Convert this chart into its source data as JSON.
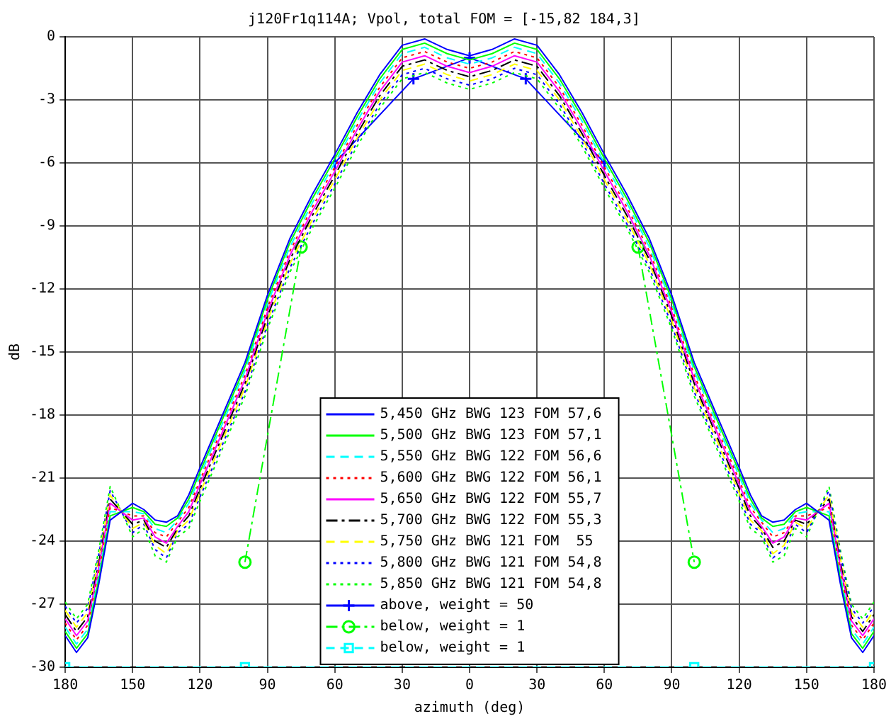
{
  "chart_data": {
    "type": "line",
    "title": "j120Fr1q114A; Vpol, total FOM = [-15,82 184,3]",
    "xlabel": "azimuth (deg)",
    "ylabel": "dB",
    "x": [
      -180,
      -175,
      -170,
      -165,
      -160,
      -150,
      -145,
      -140,
      -135,
      -130,
      -125,
      -120,
      -110,
      -100,
      -90,
      -80,
      -70,
      -60,
      -50,
      -40,
      -30,
      -20,
      -10,
      0,
      10,
      20,
      30,
      40,
      50,
      60,
      70,
      80,
      90,
      100,
      110,
      120,
      125,
      130,
      135,
      140,
      145,
      150,
      160,
      165,
      170,
      175,
      180
    ],
    "series": [
      {
        "name": "5,450 GHz BWG 123 FOM 57,6",
        "color": "#0000ff",
        "line_style": "solid",
        "marker": "none",
        "values": [
          -28.5,
          -29.3,
          -28.6,
          -26,
          -23,
          -22.2,
          -22.5,
          -23.0,
          -23.1,
          -22.8,
          -21.8,
          -20.5,
          -18,
          -15.5,
          -12.3,
          -9.6,
          -7.5,
          -5.6,
          -3.6,
          -1.8,
          -0.4,
          -0.1,
          -0.6,
          -0.9,
          -0.6,
          -0.1,
          -0.4,
          -1.8,
          -3.6,
          -5.6,
          -7.5,
          -9.6,
          -12.3,
          -15.5,
          -18,
          -20.5,
          -21.8,
          -22.8,
          -23.1,
          -23.0,
          -22.5,
          -22.2,
          -23,
          -26,
          -28.6,
          -29.3,
          -28.5
        ]
      },
      {
        "name": "5,500 GHz BWG 123 FOM 57,1",
        "color": "#00ff00",
        "line_style": "solid",
        "marker": "none",
        "values": [
          -28.3,
          -29.1,
          -28.4,
          -25.8,
          -22.8,
          -22.4,
          -22.6,
          -23.2,
          -23.3,
          -22.9,
          -22.0,
          -20.7,
          -18.2,
          -15.7,
          -12.5,
          -9.8,
          -7.7,
          -5.8,
          -3.8,
          -2.0,
          -0.6,
          -0.3,
          -0.8,
          -1.1,
          -0.8,
          -0.3,
          -0.6,
          -2.0,
          -3.8,
          -5.8,
          -7.7,
          -9.8,
          -12.5,
          -15.7,
          -18.2,
          -20.7,
          -22.0,
          -22.9,
          -23.3,
          -23.2,
          -22.6,
          -22.4,
          -22.8,
          -25.8,
          -28.4,
          -29.1,
          -28.3
        ]
      },
      {
        "name": "5,550 GHz BWG 122 FOM 56,6",
        "color": "#00ffff",
        "line_style": "dashed",
        "marker": "none",
        "values": [
          -28.1,
          -28.9,
          -28.2,
          -25.6,
          -22.6,
          -22.6,
          -22.7,
          -23.4,
          -23.6,
          -23.0,
          -22.2,
          -20.9,
          -18.4,
          -15.9,
          -12.7,
          -10.0,
          -7.9,
          -6.0,
          -4.0,
          -2.2,
          -0.8,
          -0.5,
          -1.0,
          -1.3,
          -1.0,
          -0.5,
          -0.8,
          -2.2,
          -4.0,
          -6.0,
          -7.9,
          -10.0,
          -12.7,
          -15.9,
          -18.4,
          -20.9,
          -22.2,
          -23.0,
          -23.6,
          -23.4,
          -22.7,
          -22.6,
          -22.6,
          -25.6,
          -28.2,
          -28.9,
          -28.1
        ]
      },
      {
        "name": "5,600 GHz BWG 122 FOM 56,1",
        "color": "#ff0000",
        "line_style": "dotted",
        "marker": "none",
        "values": [
          -27.9,
          -28.7,
          -28.0,
          -25.4,
          -22.4,
          -22.8,
          -22.8,
          -23.6,
          -23.8,
          -23.1,
          -22.4,
          -21.1,
          -18.6,
          -16.1,
          -12.9,
          -10.2,
          -8.1,
          -6.2,
          -4.2,
          -2.4,
          -1.0,
          -0.7,
          -1.2,
          -1.5,
          -1.2,
          -0.7,
          -1.0,
          -2.4,
          -4.2,
          -6.2,
          -8.1,
          -10.2,
          -12.9,
          -16.1,
          -18.6,
          -21.1,
          -22.4,
          -23.1,
          -23.8,
          -23.6,
          -22.8,
          -22.8,
          -22.4,
          -25.4,
          -28.0,
          -28.7,
          -27.9
        ]
      },
      {
        "name": "5,650 GHz BWG 122 FOM 55,7",
        "color": "#ff00ff",
        "line_style": "solid",
        "marker": "none",
        "values": [
          -27.7,
          -28.5,
          -27.8,
          -25.2,
          -22.2,
          -23.0,
          -22.9,
          -23.8,
          -24.1,
          -23.3,
          -22.6,
          -21.3,
          -18.8,
          -16.3,
          -13.1,
          -10.4,
          -8.3,
          -6.4,
          -4.4,
          -2.6,
          -1.2,
          -0.9,
          -1.4,
          -1.7,
          -1.4,
          -0.9,
          -1.2,
          -2.6,
          -4.4,
          -6.4,
          -8.3,
          -10.4,
          -13.1,
          -16.3,
          -18.8,
          -21.3,
          -22.6,
          -23.3,
          -24.1,
          -23.8,
          -22.9,
          -23.0,
          -22.2,
          -25.2,
          -27.8,
          -28.5,
          -27.7
        ]
      },
      {
        "name": "5,700 GHz BWG 122 FOM 55,3",
        "color": "#000000",
        "line_style": "dashdot",
        "marker": "none",
        "values": [
          -27.5,
          -28.3,
          -27.6,
          -25.0,
          -22.0,
          -23.2,
          -23.0,
          -24.0,
          -24.3,
          -23.4,
          -22.8,
          -21.5,
          -19.0,
          -16.5,
          -13.3,
          -10.6,
          -8.5,
          -6.6,
          -4.6,
          -2.8,
          -1.4,
          -1.1,
          -1.6,
          -1.9,
          -1.6,
          -1.1,
          -1.4,
          -2.8,
          -4.6,
          -6.6,
          -8.5,
          -10.6,
          -13.3,
          -16.5,
          -19.0,
          -21.5,
          -22.8,
          -23.4,
          -24.3,
          -24.0,
          -23.0,
          -23.2,
          -22.0,
          -25.0,
          -27.6,
          -28.3,
          -27.5
        ]
      },
      {
        "name": "5,750 GHz BWG 121 FOM  55",
        "color": "#ffff00",
        "line_style": "dashed",
        "marker": "none",
        "values": [
          -27.3,
          -28.1,
          -27.4,
          -24.8,
          -21.8,
          -23.4,
          -23.1,
          -24.2,
          -24.6,
          -23.5,
          -23.0,
          -21.7,
          -19.2,
          -16.7,
          -13.5,
          -10.8,
          -8.7,
          -6.8,
          -4.8,
          -3.0,
          -1.6,
          -1.3,
          -1.8,
          -2.1,
          -1.8,
          -1.3,
          -1.6,
          -3.0,
          -4.8,
          -6.8,
          -8.7,
          -10.8,
          -13.5,
          -16.7,
          -19.2,
          -21.7,
          -23.0,
          -23.5,
          -24.6,
          -24.2,
          -23.1,
          -23.4,
          -21.8,
          -24.8,
          -27.4,
          -28.1,
          -27.3
        ]
      },
      {
        "name": "5,800 GHz BWG 121 FOM 54,8",
        "color": "#0000ff",
        "line_style": "dotted",
        "marker": "none",
        "values": [
          -27.1,
          -27.9,
          -27.2,
          -24.6,
          -21.6,
          -23.6,
          -23.2,
          -24.4,
          -24.8,
          -23.6,
          -23.2,
          -21.9,
          -19.4,
          -16.9,
          -13.7,
          -11.0,
          -8.9,
          -7.0,
          -5.0,
          -3.2,
          -1.8,
          -1.5,
          -2.0,
          -2.3,
          -2.0,
          -1.5,
          -1.8,
          -3.2,
          -5.0,
          -7.0,
          -8.9,
          -11.0,
          -13.7,
          -16.9,
          -19.4,
          -21.9,
          -23.2,
          -23.6,
          -24.8,
          -24.4,
          -23.2,
          -23.6,
          -21.6,
          -24.6,
          -27.2,
          -27.9,
          -27.1
        ]
      },
      {
        "name": "5,850 GHz BWG 121 FOM 54,8",
        "color": "#00ff00",
        "line_style": "dotted",
        "marker": "none",
        "values": [
          -26.9,
          -27.7,
          -27.0,
          -24.4,
          -21.4,
          -23.8,
          -23.4,
          -24.7,
          -25.0,
          -23.8,
          -23.4,
          -22.1,
          -19.6,
          -17.1,
          -13.9,
          -11.2,
          -9.1,
          -7.2,
          -5.2,
          -3.4,
          -2.0,
          -1.7,
          -2.2,
          -2.5,
          -2.2,
          -1.7,
          -2.0,
          -3.4,
          -5.2,
          -7.2,
          -9.1,
          -11.2,
          -13.9,
          -17.1,
          -19.6,
          -22.1,
          -23.4,
          -23.8,
          -25.0,
          -24.7,
          -23.4,
          -23.8,
          -21.4,
          -24.4,
          -27.0,
          -27.7,
          -26.9
        ]
      },
      {
        "name": "above, weight = 50",
        "color": "#0000ff",
        "line_style": "solid",
        "marker": "cross",
        "x": [
          -60,
          -25,
          0,
          25,
          60
        ],
        "values": [
          -6,
          -2,
          -1,
          -2,
          -6
        ]
      },
      {
        "name": "below, weight = 1",
        "color": "#00ff00",
        "line_style": "dashdot",
        "marker": "circle",
        "x": [
          -100,
          -75,
          0,
          75,
          100
        ],
        "values": [
          -25,
          -10,
          null,
          -10,
          -25
        ]
      },
      {
        "name": "below, weight = 1",
        "color": "#00ffff",
        "line_style": "dashed",
        "marker": "square",
        "x": [
          -180,
          -100,
          100,
          180
        ],
        "values": [
          -30,
          -30,
          -30,
          -30
        ]
      }
    ],
    "xlim": [
      -180,
      180
    ],
    "xticks": [
      {
        "value": -180,
        "label": "180"
      },
      {
        "value": -150,
        "label": "150"
      },
      {
        "value": -120,
        "label": "120"
      },
      {
        "value": -90,
        "label": "90"
      },
      {
        "value": -60,
        "label": "60"
      },
      {
        "value": -30,
        "label": "30"
      },
      0,
      30,
      60,
      90,
      120,
      150,
      180
    ],
    "ylim": [
      -30,
      0
    ],
    "yticks": [
      0,
      -3,
      -6,
      -9,
      -12,
      -15,
      -18,
      -21,
      -24,
      -27,
      -30
    ],
    "grid": true,
    "legend": "bottom"
  }
}
